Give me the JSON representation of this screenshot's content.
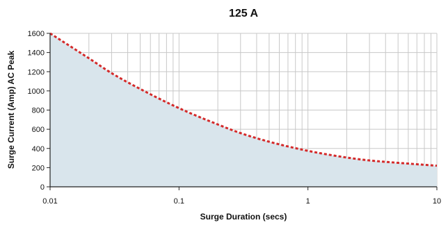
{
  "chart_data": {
    "type": "area",
    "title": "125 A",
    "xlabel": "Surge Duration (secs)",
    "ylabel": "Surge Current (Amp) AC Peak",
    "x_scale": "log",
    "xlim": [
      0.01,
      10
    ],
    "ylim": [
      0,
      1600
    ],
    "x_ticks": [
      "0.01",
      "0.1",
      "1",
      "10"
    ],
    "y_ticks": [
      "0",
      "200",
      "400",
      "600",
      "800",
      "1000",
      "1200",
      "1400",
      "1600"
    ],
    "grid": true,
    "series": [
      {
        "x": [
          0.01,
          0.02,
          0.03,
          0.05,
          0.1,
          0.2,
          0.3,
          0.5,
          1,
          2,
          3,
          5,
          10
        ],
        "y": [
          1600,
          1340,
          1185,
          1020,
          820,
          650,
          560,
          470,
          375,
          305,
          275,
          250,
          220
        ]
      }
    ],
    "colors": {
      "line": "#d42a2a",
      "fill": "#d9e5ec",
      "grid": "#c8c8c8",
      "axis": "#222222"
    }
  }
}
